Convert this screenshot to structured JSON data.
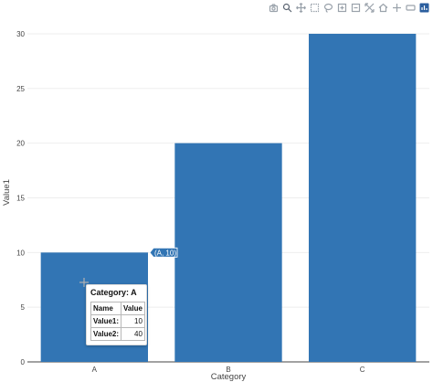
{
  "modebar": {
    "buttons": [
      {
        "name": "camera-icon",
        "active": false
      },
      {
        "name": "zoom-icon",
        "active": true
      },
      {
        "name": "pan-icon",
        "active": false
      },
      {
        "name": "box-select-icon",
        "active": false
      },
      {
        "name": "lasso-select-icon",
        "active": false
      },
      {
        "name": "zoom-in-icon",
        "active": false
      },
      {
        "name": "zoom-out-icon",
        "active": false
      },
      {
        "name": "autoscale-icon",
        "active": false
      },
      {
        "name": "home-icon",
        "active": false
      },
      {
        "name": "spike-lines-icon",
        "active": false
      },
      {
        "name": "compare-hover-icon",
        "active": false
      },
      {
        "name": "plotly-logo-icon",
        "active": false
      }
    ]
  },
  "chart_data": {
    "type": "bar",
    "categories": [
      "A",
      "B",
      "C"
    ],
    "series": [
      {
        "values": [
          10,
          20,
          30
        ]
      }
    ],
    "xlabel": "Category",
    "ylabel": "Value1",
    "ylim": [
      0,
      31
    ],
    "yticks": [
      0,
      5,
      10,
      15,
      20,
      25,
      30
    ],
    "grid": true,
    "bar_color": "#3275b4",
    "hover_label": "(A, 10)"
  },
  "tooltip": {
    "title": "Category: A",
    "header_name": "Name",
    "header_value": "Value",
    "rows": [
      {
        "name": "Value1:",
        "value": "10"
      },
      {
        "name": "Value2:",
        "value": "40"
      }
    ]
  }
}
